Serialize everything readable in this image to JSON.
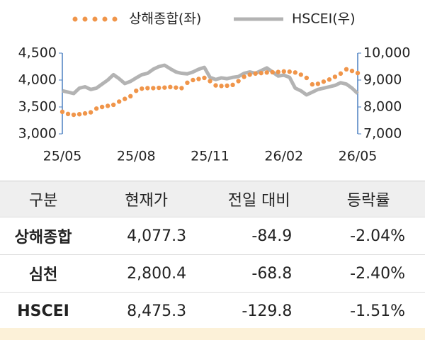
{
  "chart_data": {
    "type": "line",
    "categories": [
      "25/05",
      null,
      null,
      null,
      null,
      null,
      null,
      null,
      null,
      null,
      null,
      null,
      null,
      "25/08",
      null,
      null,
      null,
      null,
      null,
      null,
      null,
      null,
      null,
      null,
      null,
      null,
      "25/11",
      null,
      null,
      null,
      null,
      null,
      null,
      null,
      null,
      null,
      null,
      null,
      null,
      "26/02",
      null,
      null,
      null,
      null,
      null,
      null,
      null,
      null,
      null,
      null,
      null,
      null,
      "26/05"
    ],
    "series": [
      {
        "name": "상해종합(좌)",
        "color": "#f0954a",
        "style": "dots",
        "axis": "y",
        "values": [
          3410,
          3370,
          3355,
          3365,
          3380,
          3400,
          3470,
          3500,
          3520,
          3540,
          3600,
          3650,
          3700,
          3800,
          3840,
          3850,
          3850,
          3855,
          3860,
          3870,
          3860,
          3850,
          3950,
          4000,
          4020,
          4040,
          3980,
          3900,
          3890,
          3895,
          3910,
          3980,
          4060,
          4100,
          4120,
          4130,
          4140,
          4145,
          4150,
          4160,
          4155,
          4140,
          4100,
          4040,
          3920,
          3930,
          3970,
          4010,
          4060,
          4120,
          4200,
          4170,
          4130
        ]
      },
      {
        "name": "HSCEI(우)",
        "color": "#b3b3b3",
        "style": "line",
        "axis": "y2",
        "values": [
          8600,
          8550,
          8500,
          8700,
          8750,
          8650,
          8700,
          8850,
          9000,
          9200,
          9050,
          8870,
          8950,
          9080,
          9200,
          9250,
          9400,
          9500,
          9550,
          9420,
          9300,
          9250,
          9230,
          9300,
          9400,
          9470,
          9100,
          9020,
          9080,
          9050,
          9100,
          9130,
          9250,
          9300,
          9250,
          9350,
          9450,
          9300,
          9150,
          9180,
          9100,
          8700,
          8600,
          8450,
          8550,
          8650,
          8700,
          8750,
          8800,
          8900,
          8850,
          8700,
          8500
        ]
      }
    ],
    "ylim": [
      3000,
      4500
    ],
    "yticks": [
      {
        "value": 3000,
        "label": "3,000"
      },
      {
        "value": 3500,
        "label": "3,500"
      },
      {
        "value": 4000,
        "label": "4,000"
      },
      {
        "value": 4500,
        "label": "4,500"
      }
    ],
    "y2lim": [
      7000,
      10000
    ],
    "y2ticks": [
      {
        "value": 7000,
        "label": "7,000"
      },
      {
        "value": 8000,
        "label": "8,000"
      },
      {
        "value": 9000,
        "label": "9,000"
      },
      {
        "value": 10000,
        "label": "10,000"
      }
    ],
    "axis_color": "#4a7fc1",
    "grid": false,
    "legend": "top"
  },
  "table": {
    "header": [
      "구분",
      "현재가",
      "전일 대비",
      "등락률"
    ],
    "rows": [
      [
        "상해종합",
        "4,077.3",
        "-84.9",
        "-2.04%"
      ],
      [
        "심천",
        "2,800.4",
        "-68.8",
        "-2.40%"
      ],
      [
        "HSCEI",
        "8,475.3",
        "-129.8",
        "-1.51%"
      ]
    ]
  }
}
